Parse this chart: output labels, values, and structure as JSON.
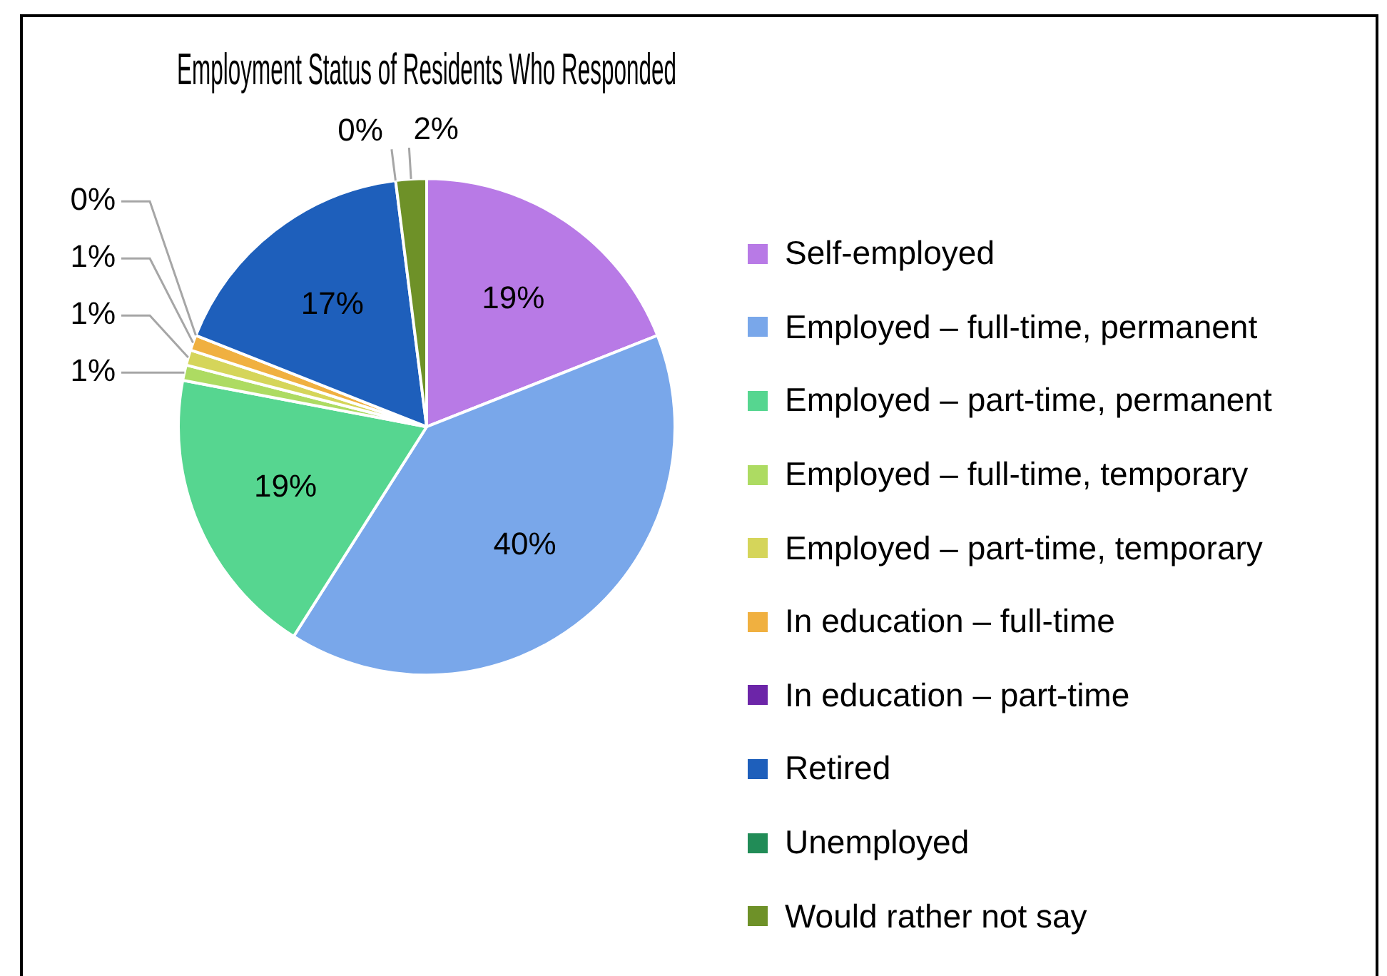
{
  "chart_data": {
    "type": "pie",
    "title": "Employment Status of Residents Who Responded",
    "categories": [
      "Self-employed",
      "Employed – full-time, permanent",
      "Employed – part-time, permanent",
      "Employed – full-time, temporary",
      "Employed – part-time, temporary",
      "In education – full-time",
      "In education – part-time",
      "Retired",
      "Unemployed",
      "Would rather not say"
    ],
    "values": [
      19,
      40,
      19,
      1,
      1,
      1,
      0,
      17,
      0,
      2
    ],
    "colors": [
      "#b87ae6",
      "#79a7ea",
      "#56d690",
      "#addb62",
      "#d5d55a",
      "#f0b040",
      "#6c25a8",
      "#1e5fbb",
      "#218c57",
      "#6e9128"
    ],
    "value_labels": [
      "19%",
      "40%",
      "19%",
      "1%",
      "1%",
      "1%",
      "0%",
      "17%",
      "0%",
      "2%"
    ],
    "legend": "right"
  }
}
